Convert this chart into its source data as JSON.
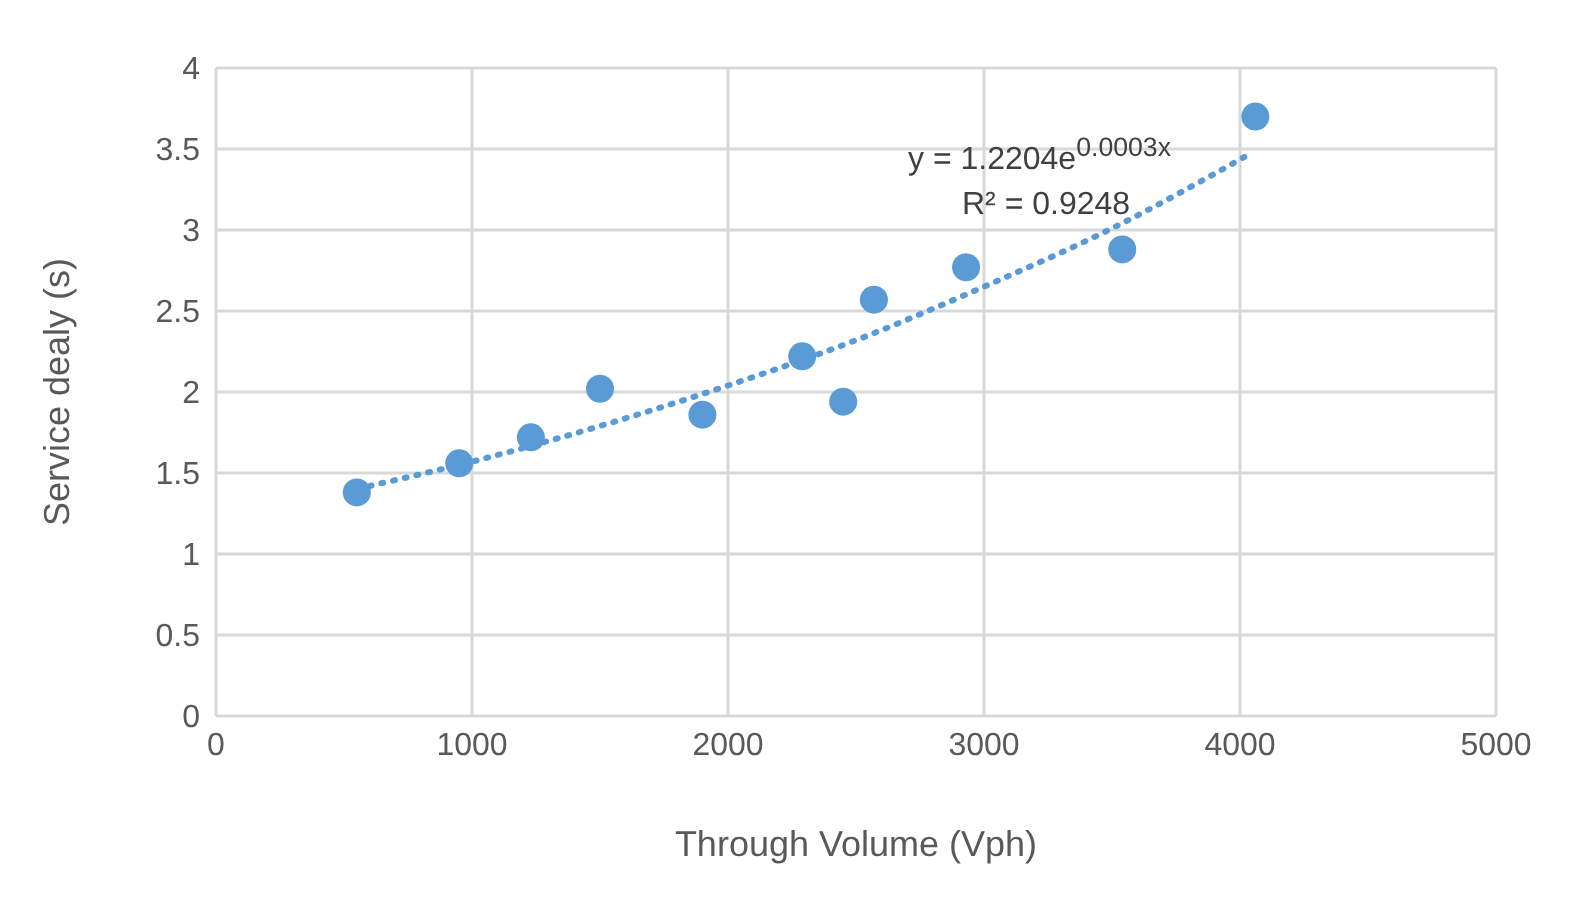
{
  "chart_data": {
    "type": "scatter",
    "xlabel": "Through Volume (Vph)",
    "ylabel": "Service dealy (s)",
    "annotations": [
      "y = 1.2204e$^{0.0003x}$",
      "R² = 0.9248"
    ],
    "xlim": [
      0,
      5000
    ],
    "xticks": [
      0,
      1000,
      2000,
      3000,
      4000,
      5000
    ],
    "ylim": [
      0,
      4
    ],
    "yticks": [
      0,
      0.5,
      1,
      1.5,
      2,
      2.5,
      3,
      3.5,
      4
    ],
    "grid": true,
    "series": [
      {
        "color": "#5b9bd5",
        "marker": "circle",
        "x": [
          550,
          950,
          1230,
          1500,
          1900,
          2290,
          2450,
          2570,
          2930,
          3540,
          4060
        ],
        "values": [
          1.38,
          1.56,
          1.72,
          2.02,
          1.86,
          2.22,
          1.94,
          2.57,
          2.77,
          2.88,
          3.7
        ]
      },
      {
        "type": "line",
        "color": "#5b9bd5",
        "line_style": "dotted",
        "x": [
          600,
          1000,
          1500,
          2000,
          2500,
          3000,
          3500,
          4050
        ],
        "values": [
          1.42,
          1.57,
          1.79,
          2.04,
          2.32,
          2.65,
          3.01,
          3.48
        ]
      }
    ]
  }
}
